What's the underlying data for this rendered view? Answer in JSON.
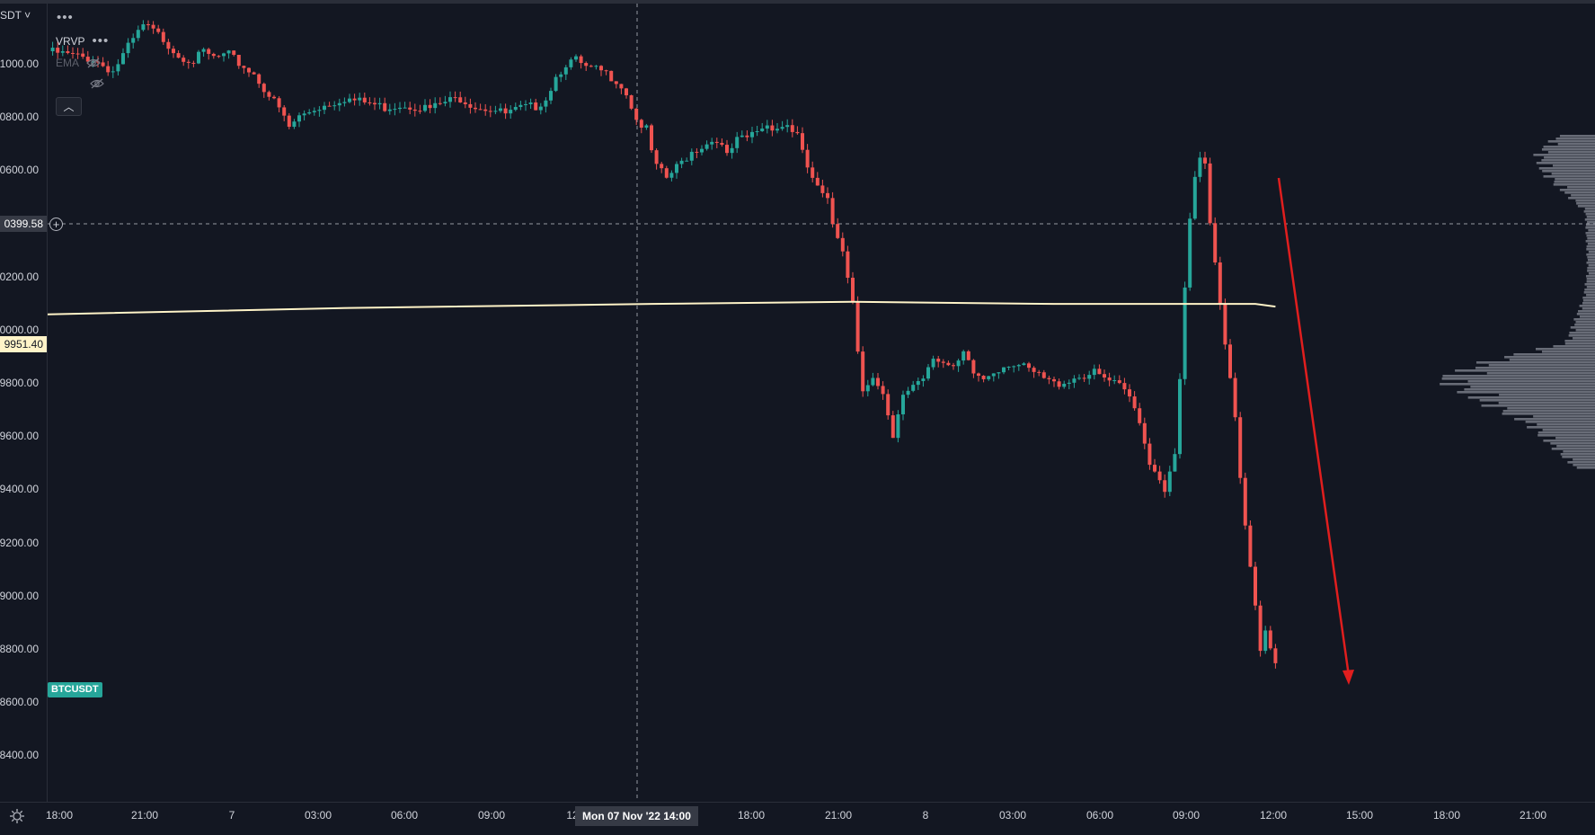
{
  "app": {
    "symbol_selector": "SDT",
    "symbol_badge": "BTCUSDT",
    "legend": {
      "indicators": [
        {
          "label": "VRVP",
          "visible": true
        },
        {
          "label": "EMA",
          "visible": false
        }
      ]
    },
    "crosshair": {
      "price_label": "0399.58",
      "time_label": "Mon 07 Nov '22   14:00"
    },
    "ema_price_label": "9951.40",
    "colors": {
      "background": "#131722",
      "up": "#26a69a",
      "down": "#ef5350",
      "ema": "#fff4c8",
      "volume_profile": "#787b86",
      "arrow": "#e01e1e",
      "grid_text": "#d1d4dc"
    }
  },
  "chart_data": {
    "type": "line",
    "title": "",
    "xlabel": "",
    "ylabel": "",
    "y_ticks": [
      "1000.00",
      "0800.00",
      "0600.00",
      "0200.00",
      "0000.00",
      "9800.00",
      "9600.00",
      "9400.00",
      "9200.00",
      "9000.00",
      "8800.00",
      "8600.00",
      "8400.00"
    ],
    "x_ticks": [
      "18:00",
      "21:00",
      "7",
      "03:00",
      "06:00",
      "09:00",
      "12",
      "18:00",
      "21:00",
      "8",
      "03:00",
      "06:00",
      "09:00",
      "12:00",
      "15:00",
      "18:00",
      "21:00"
    ],
    "series": [
      {
        "values": [
          [
            0,
            20935
          ],
          [
            9,
            20905
          ],
          [
            13,
            20860
          ],
          [
            16,
            20950
          ],
          [
            19,
            21030
          ],
          [
            21,
            21010
          ],
          [
            23,
            20980
          ],
          [
            26,
            20920
          ],
          [
            29,
            20900
          ],
          [
            31,
            20930
          ],
          [
            33,
            20910
          ],
          [
            36,
            20920
          ],
          [
            38,
            20890
          ],
          [
            41,
            20850
          ],
          [
            44,
            20770
          ],
          [
            46,
            20720
          ],
          [
            48,
            20650
          ],
          [
            50,
            20690
          ],
          [
            53,
            20720
          ],
          [
            56,
            20740
          ],
          [
            59,
            20760
          ],
          [
            61,
            20750
          ],
          [
            64,
            20740
          ],
          [
            67,
            20725
          ],
          [
            70,
            20735
          ],
          [
            73,
            20730
          ],
          [
            76,
            20720
          ],
          [
            79,
            20745
          ],
          [
            82,
            20760
          ],
          [
            85,
            20730
          ],
          [
            88,
            20720
          ],
          [
            91,
            20700
          ],
          [
            94,
            20720
          ],
          [
            97,
            20730
          ],
          [
            99,
            20760
          ],
          [
            101,
            20840
          ],
          [
            103,
            20890
          ],
          [
            105,
            20900
          ],
          [
            107,
            20870
          ],
          [
            110,
            20860
          ],
          [
            113,
            20830
          ],
          [
            115,
            20780
          ],
          [
            117,
            20680
          ],
          [
            119,
            20640
          ],
          [
            120,
            20560
          ],
          [
            121,
            20500
          ],
          [
            123,
            20460
          ],
          [
            126,
            20520
          ],
          [
            128,
            20560
          ],
          [
            131,
            20590
          ],
          [
            133,
            20610
          ],
          [
            135,
            20540
          ],
          [
            137,
            20600
          ],
          [
            139,
            20610
          ],
          [
            141,
            20640
          ],
          [
            143,
            20660
          ],
          [
            145,
            20650
          ],
          [
            147,
            20660
          ],
          [
            149,
            20620
          ],
          [
            150,
            20550
          ],
          [
            151,
            20500
          ],
          [
            152,
            20460
          ],
          [
            153,
            20420
          ],
          [
            155,
            20370
          ],
          [
            156,
            20290
          ],
          [
            158,
            20200
          ],
          [
            159,
            20100
          ],
          [
            160,
            20000
          ],
          [
            161,
            19820
          ],
          [
            162,
            19680
          ],
          [
            164,
            19710
          ],
          [
            166,
            19640
          ],
          [
            167,
            19560
          ],
          [
            168,
            19480
          ],
          [
            170,
            19650
          ],
          [
            172,
            19690
          ],
          [
            174,
            19720
          ],
          [
            176,
            19800
          ],
          [
            178,
            19770
          ],
          [
            180,
            19740
          ],
          [
            182,
            19800
          ],
          [
            184,
            19730
          ],
          [
            186,
            19710
          ],
          [
            188,
            19740
          ],
          [
            191,
            19770
          ],
          [
            193,
            19760
          ],
          [
            195,
            19740
          ],
          [
            197,
            19720
          ],
          [
            200,
            19690
          ],
          [
            202,
            19700
          ],
          [
            205,
            19720
          ],
          [
            208,
            19730
          ],
          [
            211,
            19700
          ],
          [
            213,
            19680
          ],
          [
            215,
            19640
          ],
          [
            217,
            19560
          ],
          [
            218,
            19470
          ],
          [
            219,
            19400
          ],
          [
            221,
            19340
          ],
          [
            222,
            19300
          ],
          [
            223,
            19350
          ],
          [
            224,
            19420
          ],
          [
            225,
            19700
          ],
          [
            226,
            20050
          ],
          [
            227,
            20300
          ],
          [
            228,
            20450
          ],
          [
            229,
            20530
          ],
          [
            230,
            20500
          ],
          [
            231,
            20300
          ],
          [
            232,
            20150
          ],
          [
            233,
            20000
          ],
          [
            234,
            19850
          ],
          [
            235,
            19720
          ],
          [
            236,
            19580
          ],
          [
            237,
            19350
          ],
          [
            238,
            19150
          ],
          [
            239,
            19000
          ],
          [
            240,
            18850
          ],
          [
            241,
            18680
          ],
          [
            242,
            18760
          ],
          [
            243,
            18700
          ],
          [
            244,
            18640
          ]
        ]
      },
      {
        "values": [
          [
            0,
            19951
          ],
          [
            60,
            19975
          ],
          [
            120,
            19990
          ],
          [
            160,
            19998
          ],
          [
            200,
            19990
          ],
          [
            240,
            19990
          ],
          [
            244,
            19980
          ]
        ]
      }
    ]
  }
}
